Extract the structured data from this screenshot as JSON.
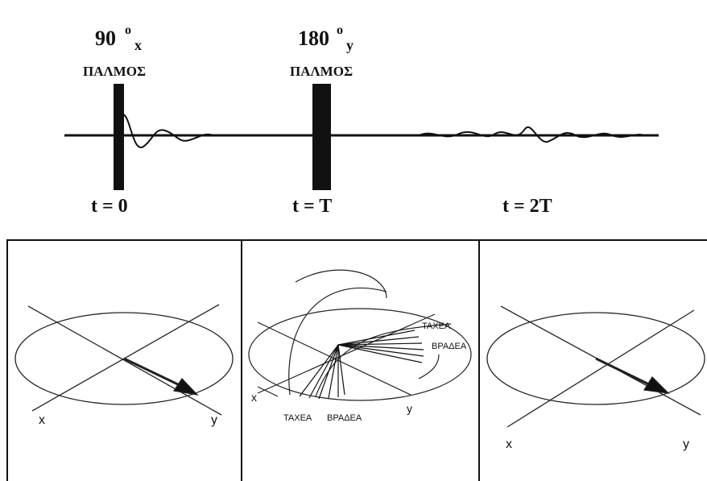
{
  "pulses": [
    {
      "angle": "90",
      "degree": "o",
      "axis": "x",
      "label": "ΠΑΛΜΟΣ"
    },
    {
      "angle": "180",
      "degree": "o",
      "axis": "y",
      "label": "ΠΑΛΜΟΣ"
    }
  ],
  "times": [
    "t = 0",
    "t = T",
    "t = 2T"
  ],
  "panels": [
    {
      "x_label": "x",
      "y_label": "y"
    },
    {
      "x_label": "x",
      "y_label": "y",
      "fast_top": "ΤΑΧΕΑ",
      "slow_top": "ΒΡΑΔΕΑ",
      "fast_bottom": "ΤΑΧΕΑ",
      "slow_bottom": "ΒΡΑΔΕΑ"
    },
    {
      "x_label": "x",
      "y_label": "y"
    }
  ]
}
